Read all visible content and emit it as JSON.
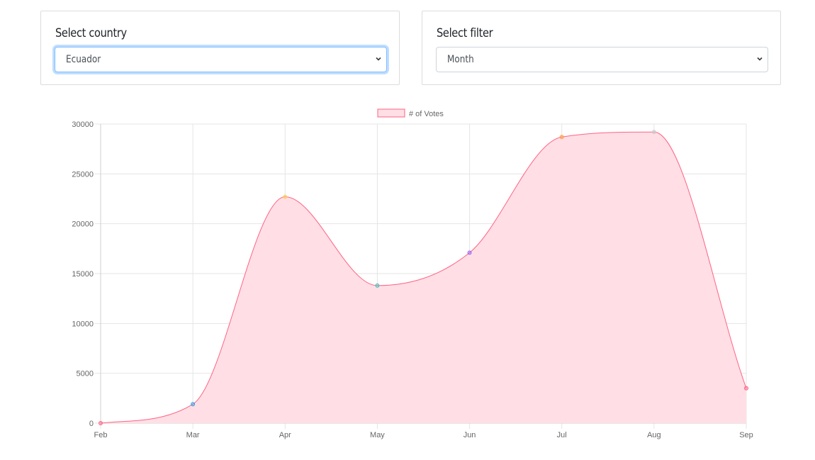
{
  "country_panel": {
    "label": "Select country",
    "selected": "Ecuador"
  },
  "filter_panel": {
    "label": "Select filter",
    "selected": "Month"
  },
  "chart_data": {
    "type": "area",
    "categories": [
      "Feb",
      "Mar",
      "Apr",
      "May",
      "Jun",
      "Jul",
      "Aug",
      "Sep"
    ],
    "series": [
      {
        "name": "# of Votes",
        "values": [
          0,
          1900,
          22700,
          13800,
          17100,
          28700,
          29200,
          3500
        ]
      }
    ],
    "ylim": [
      0,
      30000
    ],
    "yticks": [
      0,
      5000,
      10000,
      15000,
      20000,
      25000,
      30000
    ],
    "grid": true,
    "legend": "top-center",
    "colors": {
      "line": "#ff6384",
      "fill": "#ffdfe5",
      "grid": "#e5e5e5",
      "points": [
        "#ff6384",
        "#36a2eb",
        "#ffce56",
        "#4bc0c0",
        "#9966ff",
        "#ff9f40",
        "#c9cbcf",
        "#ff6384"
      ]
    }
  }
}
